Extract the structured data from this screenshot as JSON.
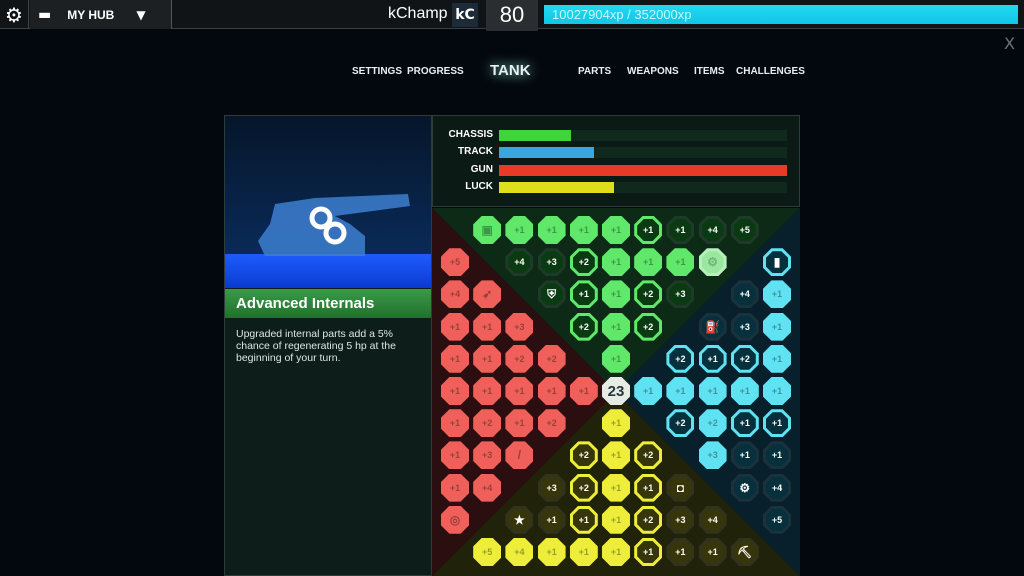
{
  "topbar": {
    "hub_label": "MY HUB",
    "username": "kChamp",
    "badge": "kC",
    "level": "80",
    "xp": "10027904xp / 352000xp",
    "close": "X"
  },
  "nav": [
    {
      "label": "SETTINGS"
    },
    {
      "label": "PROGRESS"
    },
    {
      "label": "TANK",
      "active": true
    },
    {
      "label": "PARTS"
    },
    {
      "label": "WEAPONS"
    },
    {
      "label": "ITEMS"
    },
    {
      "label": "CHALLENGES"
    }
  ],
  "item": {
    "title": "Advanced Internals",
    "description": "Upgraded internal parts add a 5% chance of regenerating 5 hp at the beginning of your turn.",
    "icon": "gears-icon"
  },
  "stats": [
    {
      "name": "CHASSIS",
      "percent": 25,
      "color": "#3fd43a"
    },
    {
      "name": "TRACK",
      "percent": 33,
      "color": "#3aa6e0"
    },
    {
      "name": "GUN",
      "percent": 100,
      "color": "#e83a26"
    },
    {
      "name": "LUCK",
      "percent": 40,
      "color": "#dede1a"
    }
  ],
  "colors": {
    "g": "#5fe86a",
    "r": "#f0605a",
    "b": "#5fe2f2",
    "y": "#eeee3a",
    "c": "#e6ece4"
  },
  "grid": [
    [
      null,
      [
        "",
        "g",
        "f",
        "chip-icon"
      ],
      [
        "+1",
        "g",
        "f"
      ],
      [
        "+1",
        "g",
        "f"
      ],
      [
        "+1",
        "g",
        "f"
      ],
      [
        "+1",
        "g",
        "f"
      ],
      [
        "+1",
        "g",
        "r"
      ],
      [
        "+1",
        "g",
        "d"
      ],
      [
        "+4",
        "g",
        "d"
      ],
      [
        "+5",
        "g",
        "d"
      ],
      null
    ],
    [
      [
        "+5",
        "r",
        "f"
      ],
      null,
      [
        "+4",
        "g",
        "d"
      ],
      [
        "+3",
        "g",
        "d"
      ],
      [
        "+2",
        "g",
        "r"
      ],
      [
        "+1",
        "g",
        "f"
      ],
      [
        "+1",
        "g",
        "f"
      ],
      [
        "+1",
        "g",
        "f"
      ],
      [
        "",
        "g",
        "p",
        "gears-icon"
      ],
      null,
      [
        "",
        "b",
        "r",
        "barrel-icon"
      ]
    ],
    [
      [
        "+4",
        "r",
        "f"
      ],
      [
        "",
        "r",
        "f",
        "rocket-icon"
      ],
      null,
      [
        "",
        "g",
        "d",
        "shield-icon"
      ],
      [
        "+1",
        "g",
        "r"
      ],
      [
        "+1",
        "g",
        "f"
      ],
      [
        "+2",
        "g",
        "r"
      ],
      [
        "+3",
        "g",
        "d"
      ],
      null,
      [
        "+4",
        "b",
        "d"
      ],
      [
        "+1",
        "b",
        "f"
      ]
    ],
    [
      [
        "+1",
        "r",
        "f"
      ],
      [
        "+1",
        "r",
        "f"
      ],
      [
        "+3",
        "r",
        "f"
      ],
      null,
      [
        "+2",
        "g",
        "r"
      ],
      [
        "+1",
        "g",
        "f"
      ],
      [
        "+2",
        "g",
        "r"
      ],
      null,
      [
        "",
        "b",
        "d",
        "fuel-icon"
      ],
      [
        "+3",
        "b",
        "d"
      ],
      [
        "+1",
        "b",
        "f"
      ]
    ],
    [
      [
        "+1",
        "r",
        "f"
      ],
      [
        "+1",
        "r",
        "f"
      ],
      [
        "+2",
        "r",
        "f"
      ],
      [
        "+2",
        "r",
        "f"
      ],
      null,
      [
        "+1",
        "g",
        "f"
      ],
      null,
      [
        "+2",
        "b",
        "r"
      ],
      [
        "+1",
        "b",
        "r"
      ],
      [
        "+2",
        "b",
        "r"
      ],
      [
        "+1",
        "b",
        "f"
      ]
    ],
    [
      [
        "+1",
        "r",
        "f"
      ],
      [
        "+1",
        "r",
        "f"
      ],
      [
        "+1",
        "r",
        "f"
      ],
      [
        "+1",
        "r",
        "f"
      ],
      [
        "+1",
        "r",
        "f"
      ],
      [
        "23",
        "c",
        "f"
      ],
      [
        "+1",
        "b",
        "f"
      ],
      [
        "+1",
        "b",
        "f"
      ],
      [
        "+1",
        "b",
        "f"
      ],
      [
        "+1",
        "b",
        "f"
      ],
      [
        "+1",
        "b",
        "f"
      ]
    ],
    [
      [
        "+1",
        "r",
        "f"
      ],
      [
        "+2",
        "r",
        "f"
      ],
      [
        "+1",
        "r",
        "f"
      ],
      [
        "+2",
        "r",
        "f"
      ],
      null,
      [
        "+1",
        "y",
        "f"
      ],
      null,
      [
        "+2",
        "b",
        "r"
      ],
      [
        "+2",
        "b",
        "f"
      ],
      [
        "+1",
        "b",
        "r"
      ],
      [
        "+1",
        "b",
        "r"
      ]
    ],
    [
      [
        "+1",
        "r",
        "f"
      ],
      [
        "+3",
        "r",
        "f"
      ],
      [
        "",
        "r",
        "f",
        "missile-icon"
      ],
      null,
      [
        "+2",
        "y",
        "r"
      ],
      [
        "+1",
        "y",
        "f"
      ],
      [
        "+2",
        "y",
        "r"
      ],
      null,
      [
        "+3",
        "b",
        "f"
      ],
      [
        "+1",
        "b",
        "d"
      ],
      [
        "+1",
        "b",
        "d"
      ]
    ],
    [
      [
        "+1",
        "r",
        "f"
      ],
      [
        "+4",
        "r",
        "f"
      ],
      null,
      [
        "+3",
        "y",
        "d"
      ],
      [
        "+2",
        "y",
        "r"
      ],
      [
        "+1",
        "y",
        "f"
      ],
      [
        "+1",
        "y",
        "r"
      ],
      [
        "",
        "y",
        "d",
        "armor-icon"
      ],
      null,
      [
        "",
        "b",
        "d",
        "engine-icon"
      ],
      [
        "+4",
        "b",
        "d"
      ]
    ],
    [
      [
        "",
        "r",
        "f",
        "target-icon"
      ],
      null,
      [
        "",
        "y",
        "d",
        "star-icon"
      ],
      [
        "+1",
        "y",
        "d"
      ],
      [
        "+1",
        "y",
        "r"
      ],
      [
        "+1",
        "y",
        "f"
      ],
      [
        "+2",
        "y",
        "r"
      ],
      [
        "+3",
        "y",
        "d"
      ],
      [
        "+4",
        "y",
        "d"
      ],
      null,
      [
        "+5",
        "b",
        "d"
      ]
    ],
    [
      null,
      [
        "+5",
        "y",
        "f"
      ],
      [
        "+4",
        "y",
        "f"
      ],
      [
        "+1",
        "y",
        "f"
      ],
      [
        "+1",
        "y",
        "f"
      ],
      [
        "+1",
        "y",
        "f"
      ],
      [
        "+1",
        "y",
        "r"
      ],
      [
        "+1",
        "y",
        "d"
      ],
      [
        "+1",
        "y",
        "d"
      ],
      [
        "",
        "y",
        "d",
        "pickaxe-icon"
      ],
      null
    ]
  ]
}
